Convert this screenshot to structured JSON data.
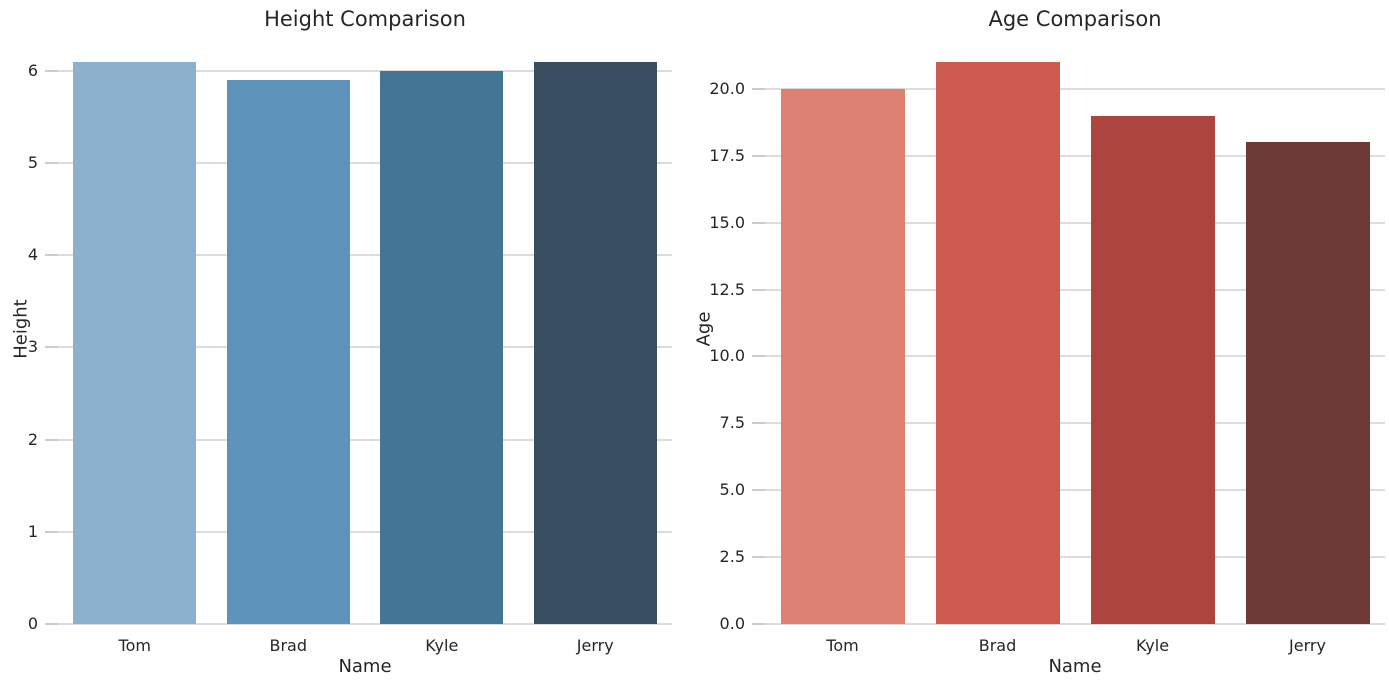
{
  "figure": {
    "background": "#ffffff",
    "text_color": "#262626",
    "grid_color": "#dcdcdc",
    "tick_color": "#cccccc"
  },
  "chart_data": [
    {
      "type": "bar",
      "title": "Height Comparison",
      "xlabel": "Name",
      "ylabel": "Height",
      "categories": [
        "Tom",
        "Brad",
        "Kyle",
        "Jerry"
      ],
      "values": [
        6.1,
        5.9,
        6.0,
        6.1
      ],
      "bar_colors": [
        "#8bb1ce",
        "#5d92ba",
        "#457595",
        "#3a4e61"
      ],
      "ylim": [
        0,
        6.4
      ],
      "yticks": [
        0,
        1,
        2,
        3,
        4,
        5,
        6
      ],
      "ytick_labels": [
        "0",
        "1",
        "2",
        "3",
        "4",
        "5",
        "6"
      ],
      "grid": true,
      "legend": false
    },
    {
      "type": "bar",
      "title": "Age Comparison",
      "xlabel": "Name",
      "ylabel": "Age",
      "categories": [
        "Tom",
        "Brad",
        "Kyle",
        "Jerry"
      ],
      "values": [
        20,
        21,
        19,
        18
      ],
      "bar_colors": [
        "#dd8172",
        "#cd5a50",
        "#ad443e",
        "#6d3a37"
      ],
      "ylim": [
        0,
        22.05
      ],
      "yticks": [
        0,
        2.5,
        5,
        7.5,
        10,
        12.5,
        15,
        17.5,
        20
      ],
      "ytick_labels": [
        "0.0",
        "2.5",
        "5.0",
        "7.5",
        "10.0",
        "12.5",
        "15.0",
        "17.5",
        "20.0"
      ],
      "grid": true,
      "legend": false
    }
  ]
}
